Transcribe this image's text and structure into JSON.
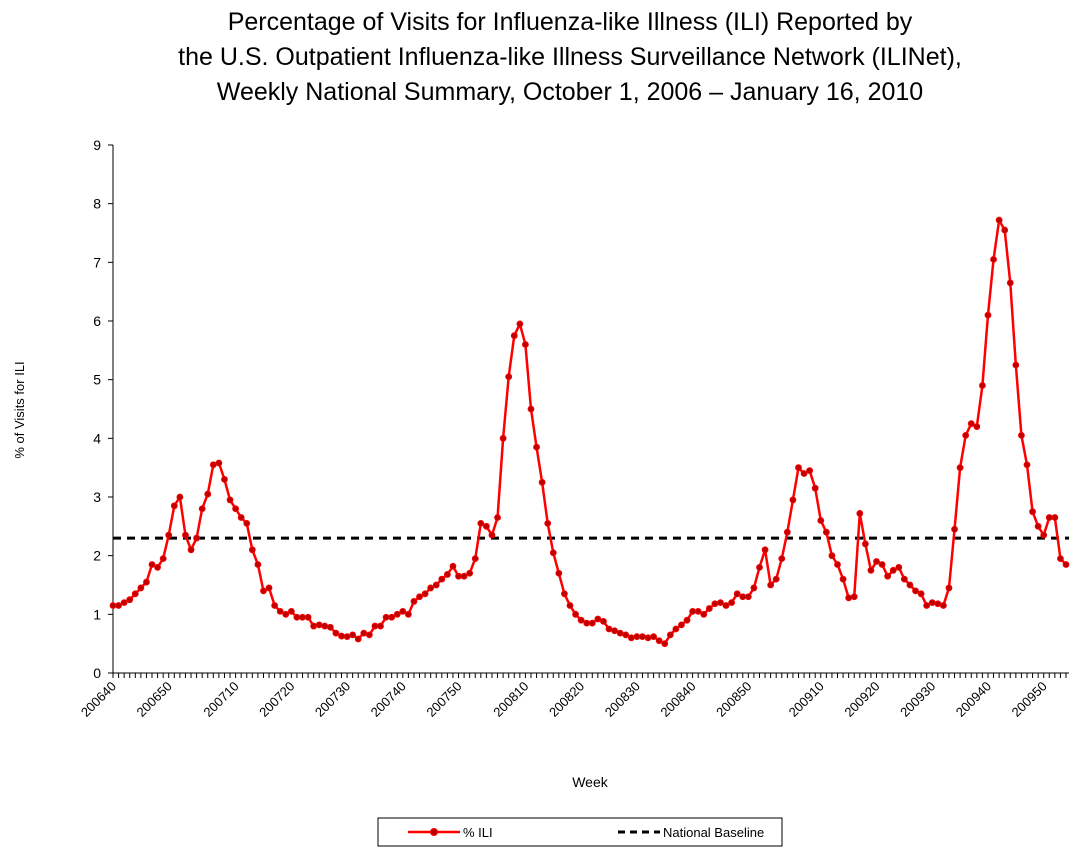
{
  "chart_data": {
    "type": "line",
    "title": [
      "Percentage of Visits for Influenza-like Illness (ILI) Reported by",
      "the U.S. Outpatient Influenza-like Illness Surveillance Network (ILINet),",
      "Weekly National Summary, October 1, 2006 – January 16, 2010"
    ],
    "x_label": "Week",
    "y_label": "% of Visits for ILI",
    "categories": [
      "200640",
      null,
      null,
      null,
      null,
      null,
      null,
      null,
      null,
      null,
      "200650",
      null,
      null,
      null,
      null,
      null,
      null,
      null,
      null,
      null,
      null,
      null,
      "200710",
      null,
      null,
      null,
      null,
      null,
      null,
      null,
      null,
      null,
      "200720",
      null,
      null,
      null,
      null,
      null,
      null,
      null,
      null,
      null,
      "200730",
      null,
      null,
      null,
      null,
      null,
      null,
      null,
      null,
      null,
      "200740",
      null,
      null,
      null,
      null,
      null,
      null,
      null,
      null,
      null,
      "200750",
      null,
      null,
      null,
      null,
      null,
      null,
      null,
      null,
      null,
      null,
      null,
      "200810",
      null,
      null,
      null,
      null,
      null,
      null,
      null,
      null,
      null,
      "200820",
      null,
      null,
      null,
      null,
      null,
      null,
      null,
      null,
      null,
      "200830",
      null,
      null,
      null,
      null,
      null,
      null,
      null,
      null,
      null,
      "200840",
      null,
      null,
      null,
      null,
      null,
      null,
      null,
      null,
      null,
      "200850",
      null,
      null,
      null,
      null,
      null,
      null,
      null,
      null,
      null,
      null,
      null,
      null,
      "200910",
      null,
      null,
      null,
      null,
      null,
      null,
      null,
      null,
      null,
      "200920",
      null,
      null,
      null,
      null,
      null,
      null,
      null,
      null,
      null,
      "200930",
      null,
      null,
      null,
      null,
      null,
      null,
      null,
      null,
      null,
      "200940",
      null,
      null,
      null,
      null,
      null,
      null,
      null,
      null,
      null,
      "200950",
      null,
      null,
      null,
      null
    ],
    "series": [
      {
        "name": "% ILI",
        "color": "#ff0000",
        "marker_color": "#c00000",
        "values": [
          1.15,
          1.15,
          1.2,
          1.25,
          1.35,
          1.45,
          1.55,
          1.85,
          1.8,
          1.95,
          2.35,
          2.85,
          3.0,
          2.35,
          2.1,
          2.3,
          2.8,
          3.05,
          3.55,
          3.58,
          3.3,
          2.95,
          2.8,
          2.65,
          2.55,
          2.1,
          1.85,
          1.4,
          1.45,
          1.15,
          1.05,
          1.0,
          1.05,
          0.95,
          0.95,
          0.95,
          0.8,
          0.82,
          0.8,
          0.78,
          0.68,
          0.63,
          0.62,
          0.65,
          0.58,
          0.68,
          0.65,
          0.8,
          0.8,
          0.95,
          0.95,
          1.0,
          1.05,
          1.0,
          1.22,
          1.3,
          1.35,
          1.45,
          1.5,
          1.6,
          1.68,
          1.82,
          1.65,
          1.65,
          1.7,
          1.95,
          2.55,
          2.5,
          2.35,
          2.65,
          4.0,
          5.05,
          5.75,
          5.95,
          5.6,
          4.5,
          3.85,
          3.25,
          2.55,
          2.05,
          1.7,
          1.35,
          1.15,
          1.0,
          0.9,
          0.85,
          0.85,
          0.92,
          0.88,
          0.75,
          0.72,
          0.68,
          0.65,
          0.6,
          0.62,
          0.62,
          0.6,
          0.62,
          0.55,
          0.5,
          0.65,
          0.75,
          0.82,
          0.9,
          1.05,
          1.05,
          1.0,
          1.1,
          1.18,
          1.2,
          1.15,
          1.2,
          1.35,
          1.3,
          1.3,
          1.45,
          1.8,
          2.1,
          1.5,
          1.6,
          1.95,
          2.4,
          2.95,
          3.5,
          3.4,
          3.45,
          3.15,
          2.6,
          2.4,
          2.0,
          1.85,
          1.6,
          1.28,
          1.3,
          2.72,
          2.2,
          1.75,
          1.9,
          1.85,
          1.65,
          1.75,
          1.8,
          1.6,
          1.5,
          1.4,
          1.35,
          1.15,
          1.2,
          1.18,
          1.15,
          1.45,
          2.45,
          3.5,
          4.05,
          4.25,
          4.2,
          4.9,
          6.1,
          7.05,
          7.72,
          7.55,
          6.65,
          5.25,
          4.05,
          3.55,
          2.75,
          2.5,
          2.35,
          2.65,
          2.65,
          1.95,
          1.85
        ]
      }
    ],
    "baseline": {
      "name": "National Baseline",
      "value": 2.3,
      "color": "#000000"
    },
    "ylim": [
      0,
      9
    ],
    "yticks": [
      0,
      1,
      2,
      3,
      4,
      5,
      6,
      7,
      8,
      9
    ],
    "grid": false
  }
}
